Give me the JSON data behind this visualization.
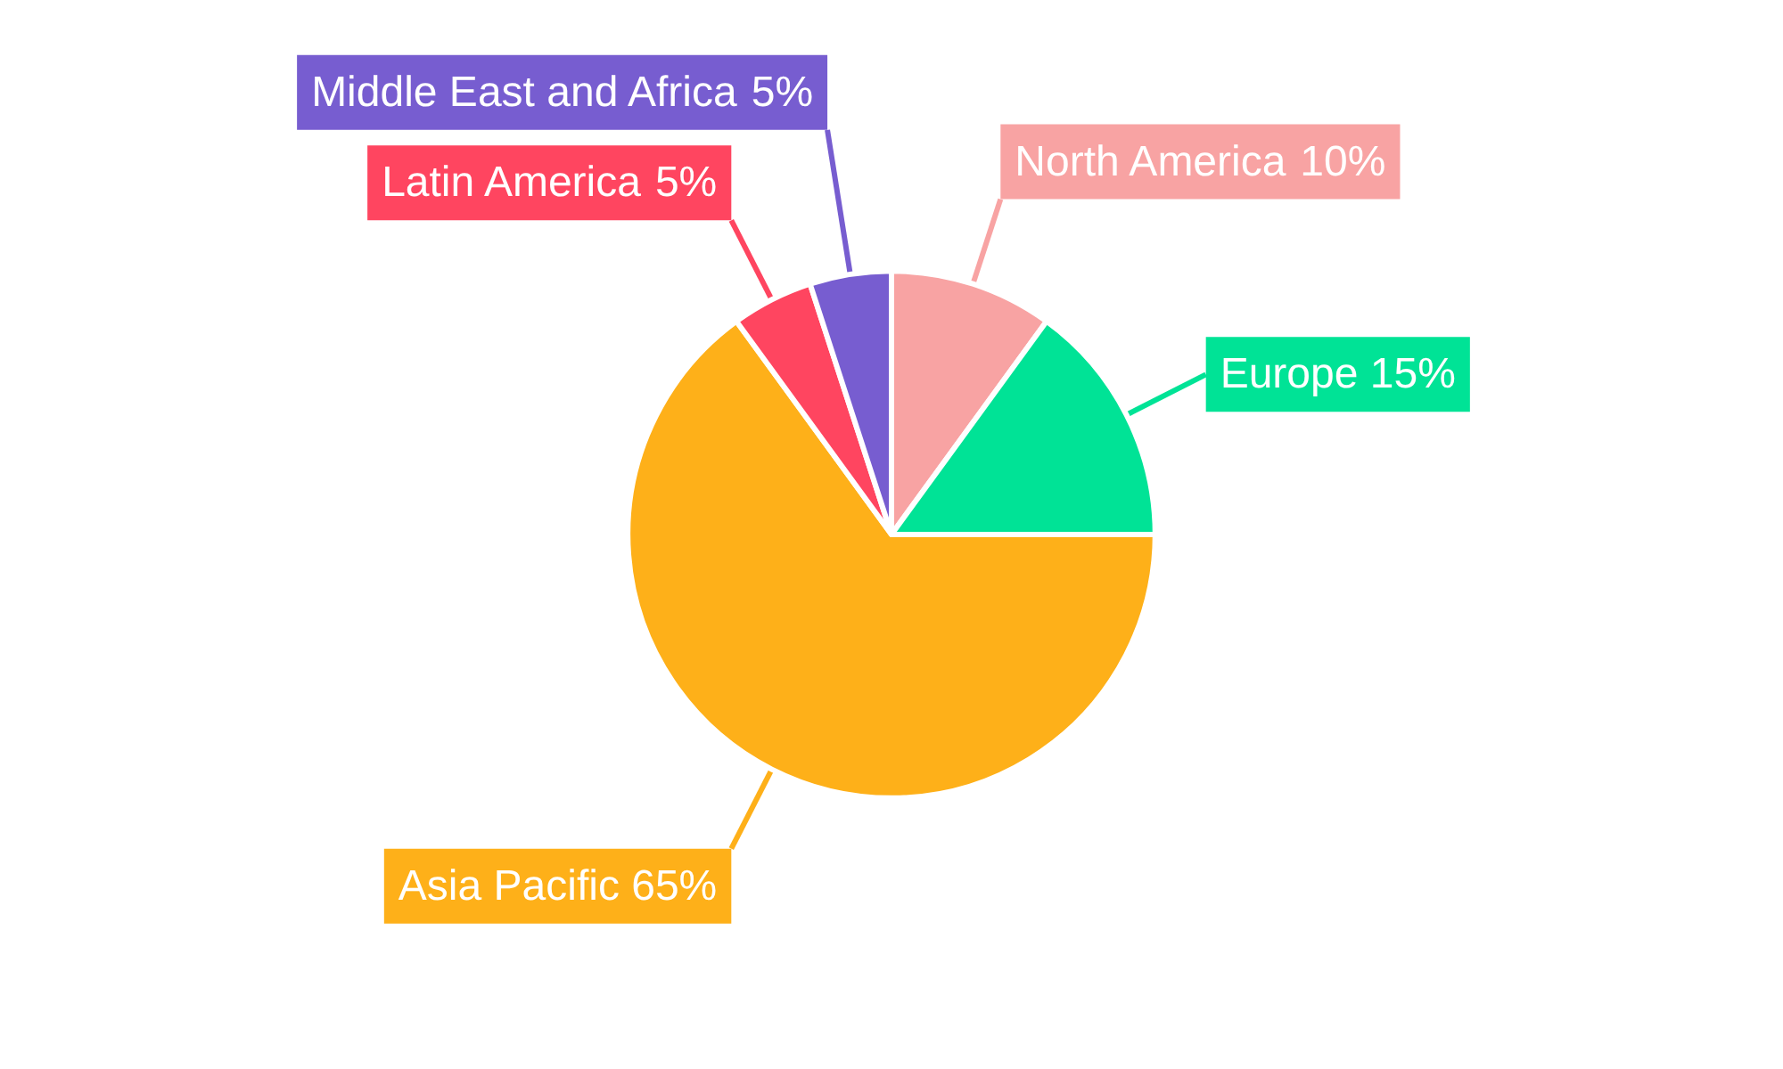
{
  "chart_data": {
    "type": "pie",
    "categories": [
      "North America",
      "Europe",
      "Asia Pacific",
      "Latin America",
      "Middle East and Africa"
    ],
    "values": [
      10,
      15,
      65,
      5,
      5
    ],
    "value_labels": [
      "10%",
      "15%",
      "65%",
      "5%",
      "5%"
    ],
    "colors": [
      "#f8a3a3",
      "#00e396",
      "#feb019",
      "#ff4560",
      "#775dd0"
    ],
    "legend": false
  }
}
